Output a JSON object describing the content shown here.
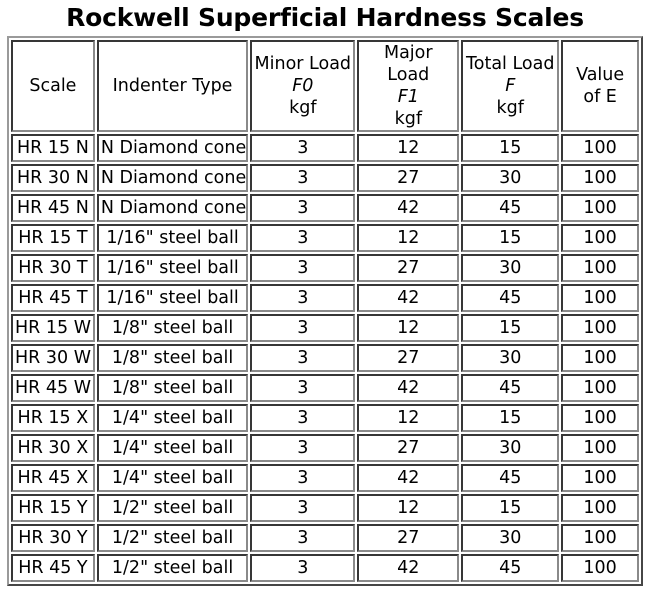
{
  "title": "Rockwell Superficial Hardness Scales",
  "table": {
    "headers": [
      {
        "label": "Scale"
      },
      {
        "label": "Indenter Type"
      },
      {
        "label": "Minor Load",
        "symbol": "F0",
        "unit": "kgf"
      },
      {
        "label": "Major Load",
        "symbol": "F1",
        "unit": "kgf"
      },
      {
        "label": "Total Load",
        "symbol": "F",
        "unit": "kgf"
      },
      {
        "label": "Value of E"
      }
    ],
    "rows": [
      {
        "scale": "HR 15 N",
        "indenter": "N Diamond cone",
        "minor": "3",
        "major": "12",
        "total": "15",
        "e": "100"
      },
      {
        "scale": "HR 30 N",
        "indenter": "N Diamond cone",
        "minor": "3",
        "major": "27",
        "total": "30",
        "e": "100"
      },
      {
        "scale": "HR 45 N",
        "indenter": "N Diamond cone",
        "minor": "3",
        "major": "42",
        "total": "45",
        "e": "100"
      },
      {
        "scale": "HR 15 T",
        "indenter": "1/16\" steel ball",
        "minor": "3",
        "major": "12",
        "total": "15",
        "e": "100"
      },
      {
        "scale": "HR 30 T",
        "indenter": "1/16\" steel ball",
        "minor": "3",
        "major": "27",
        "total": "30",
        "e": "100"
      },
      {
        "scale": "HR 45 T",
        "indenter": "1/16\" steel ball",
        "minor": "3",
        "major": "42",
        "total": "45",
        "e": "100"
      },
      {
        "scale": "HR 15 W",
        "indenter": "1/8\" steel ball",
        "minor": "3",
        "major": "12",
        "total": "15",
        "e": "100"
      },
      {
        "scale": "HR 30 W",
        "indenter": "1/8\" steel ball",
        "minor": "3",
        "major": "27",
        "total": "30",
        "e": "100"
      },
      {
        "scale": "HR 45 W",
        "indenter": "1/8\" steel ball",
        "minor": "3",
        "major": "42",
        "total": "45",
        "e": "100"
      },
      {
        "scale": "HR 15 X",
        "indenter": "1/4\" steel ball",
        "minor": "3",
        "major": "12",
        "total": "15",
        "e": "100"
      },
      {
        "scale": "HR 30 X",
        "indenter": "1/4\" steel ball",
        "minor": "3",
        "major": "27",
        "total": "30",
        "e": "100"
      },
      {
        "scale": "HR 45 X",
        "indenter": "1/4\" steel ball",
        "minor": "3",
        "major": "42",
        "total": "45",
        "e": "100"
      },
      {
        "scale": "HR 15 Y",
        "indenter": "1/2\" steel ball",
        "minor": "3",
        "major": "12",
        "total": "15",
        "e": "100"
      },
      {
        "scale": "HR 30 Y",
        "indenter": "1/2\" steel ball",
        "minor": "3",
        "major": "27",
        "total": "30",
        "e": "100"
      },
      {
        "scale": "HR 45 Y",
        "indenter": "1/2\" steel ball",
        "minor": "3",
        "major": "42",
        "total": "45",
        "e": "100"
      }
    ]
  }
}
